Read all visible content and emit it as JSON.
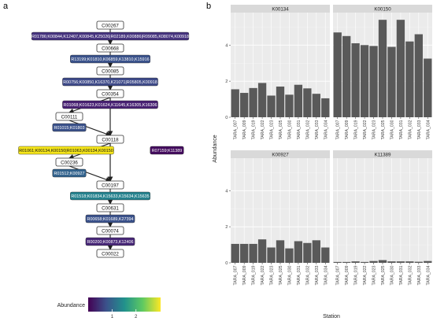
{
  "panel_labels": {
    "a": "a",
    "b": "b"
  },
  "pathway": {
    "compounds": [
      "C00267",
      "C00668",
      "C00085",
      "C00354",
      "C00111",
      "C00118",
      "C00236",
      "C00197",
      "C00631",
      "C00074",
      "C00022"
    ],
    "reactions": [
      {
        "label": "R01786;K00844,K12407,K00845,K25026|R02189,K00886|R09085,K08074,K00918",
        "color": "#46337e"
      },
      {
        "label": "R13199;K01810,K06859,K13810,K15916",
        "color": "#3a528b"
      },
      {
        "label": "R00756;K00850,K16370,K21071|R05805,K00918",
        "color": "#3e4a89"
      },
      {
        "label": "R01068;K01623,K01624,K11645,K16305,K16306",
        "color": "#482173"
      },
      {
        "label": "R01015;K01803",
        "color": "#3b528b"
      },
      {
        "label": "R01061;K00134,K00150|R01063,K00134,K00150",
        "color": "#f5e51b"
      },
      {
        "label": "R07159;K11389",
        "color": "#440c5e"
      },
      {
        "label": "R01512;K00927",
        "color": "#33638d"
      },
      {
        "label": "R01518;K01834,K15633,K15634,K15635",
        "color": "#26828e"
      },
      {
        "label": "R00658;K01689,K27394",
        "color": "#3b528b"
      },
      {
        "label": "R00200;K00873,K12406",
        "color": "#482878"
      }
    ],
    "legend": {
      "title": "Abundance",
      "ticks": [
        "1",
        "2"
      ]
    }
  },
  "chart_data": {
    "type": "bar",
    "categories": [
      "TARA_007",
      "TARA_009",
      "TARA_019",
      "TARA_022",
      "TARA_023",
      "TARA_025",
      "TARA_030",
      "TARA_031",
      "TARA_032",
      "TARA_033",
      "TARA_034"
    ],
    "ylabel": "Abundance",
    "xlabel": "Station",
    "ylim": [
      0,
      5.8
    ],
    "yticks": [
      0,
      2,
      4
    ],
    "bar_color": "#595959",
    "panel_bg": "#ebebeb",
    "strip_bg": "#d9d9d9",
    "facets": [
      {
        "name": "K00134",
        "values": [
          1.55,
          1.35,
          1.62,
          1.9,
          1.2,
          1.7,
          1.25,
          1.8,
          1.6,
          1.3,
          1.05
        ]
      },
      {
        "name": "K00150",
        "values": [
          4.7,
          4.5,
          4.1,
          4.0,
          3.95,
          5.4,
          3.9,
          5.4,
          4.2,
          4.6,
          3.25
        ]
      },
      {
        "name": "K00927",
        "values": [
          1.05,
          1.05,
          1.05,
          1.3,
          0.85,
          1.25,
          0.8,
          1.2,
          1.1,
          1.25,
          0.85
        ]
      },
      {
        "name": "K11389",
        "values": [
          0.05,
          0.05,
          0.08,
          0.05,
          0.1,
          0.15,
          0.08,
          0.08,
          0.08,
          0.06,
          0.1
        ]
      }
    ]
  }
}
